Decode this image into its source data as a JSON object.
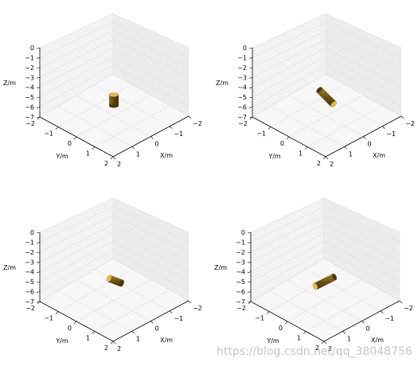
{
  "watermark": "https://blog.csdn.net/qq_38048756",
  "chart_data": [
    {
      "type": "3d-surface",
      "xlabel": "X/m",
      "ylabel": "Y/m",
      "zlabel": "Z/m",
      "xlim": [
        -2,
        2
      ],
      "ylim": [
        -2,
        2
      ],
      "zlim": [
        -7,
        0
      ],
      "x_ticks": [
        -2,
        -1,
        0,
        1,
        2
      ],
      "y_ticks": [
        -2,
        -1,
        0,
        1,
        2
      ],
      "z_ticks": [
        0,
        -1,
        -2,
        -3,
        -4,
        -5,
        -6,
        -7
      ],
      "object": {
        "shape": "cylinder",
        "center": [
          0,
          0,
          -6.2
        ],
        "radius": 0.25,
        "length": 0.8,
        "orientation": "vertical",
        "color": "#e8b84a"
      }
    },
    {
      "type": "3d-surface",
      "xlabel": "X/m",
      "ylabel": "Y/m",
      "zlabel": "Z/m",
      "xlim": [
        -2,
        2
      ],
      "ylim": [
        -2,
        2
      ],
      "zlim": [
        -7,
        0
      ],
      "x_ticks": [
        -2,
        -1,
        0,
        1,
        2
      ],
      "y_ticks": [
        -2,
        -1,
        0,
        1,
        2
      ],
      "z_ticks": [
        0,
        -1,
        -2,
        -3,
        -4,
        -5,
        -6,
        -7
      ],
      "object": {
        "shape": "cylinder",
        "center": [
          0,
          0,
          -6.2
        ],
        "radius": 0.2,
        "length": 0.9,
        "orientation": "tilted",
        "color": "#e8b84a"
      }
    },
    {
      "type": "3d-surface",
      "xlabel": "X/m",
      "ylabel": "Y/m",
      "zlabel": "Z/m",
      "xlim": [
        -2,
        2
      ],
      "ylim": [
        -2,
        2
      ],
      "zlim": [
        -7,
        0
      ],
      "x_ticks": [
        -2,
        -1,
        0,
        1,
        2
      ],
      "y_ticks": [
        -2,
        -1,
        0,
        1,
        2
      ],
      "z_ticks": [
        0,
        -1,
        -2,
        -3,
        -4,
        -5,
        -6,
        -7
      ],
      "object": {
        "shape": "cylinder",
        "center": [
          0,
          0,
          -6.2
        ],
        "radius": 0.2,
        "length": 0.8,
        "orientation": "horizontal",
        "color": "#e8b84a"
      }
    },
    {
      "type": "3d-surface",
      "xlabel": "X/m",
      "ylabel": "Y/m",
      "zlabel": "Z/m",
      "xlim": [
        -2,
        2
      ],
      "ylim": [
        -2,
        2
      ],
      "zlim": [
        -7,
        0
      ],
      "x_ticks": [
        -2,
        -1,
        0,
        1,
        2
      ],
      "y_ticks": [
        -2,
        -1,
        0,
        1,
        2
      ],
      "z_ticks": [
        0,
        -1,
        -2,
        -3,
        -4,
        -5,
        -6,
        -7
      ],
      "object": {
        "shape": "cylinder",
        "center": [
          0,
          0,
          -6.2
        ],
        "radius": 0.2,
        "length": 1.0,
        "orientation": "horizontal",
        "color": "#e8b84a"
      }
    }
  ]
}
